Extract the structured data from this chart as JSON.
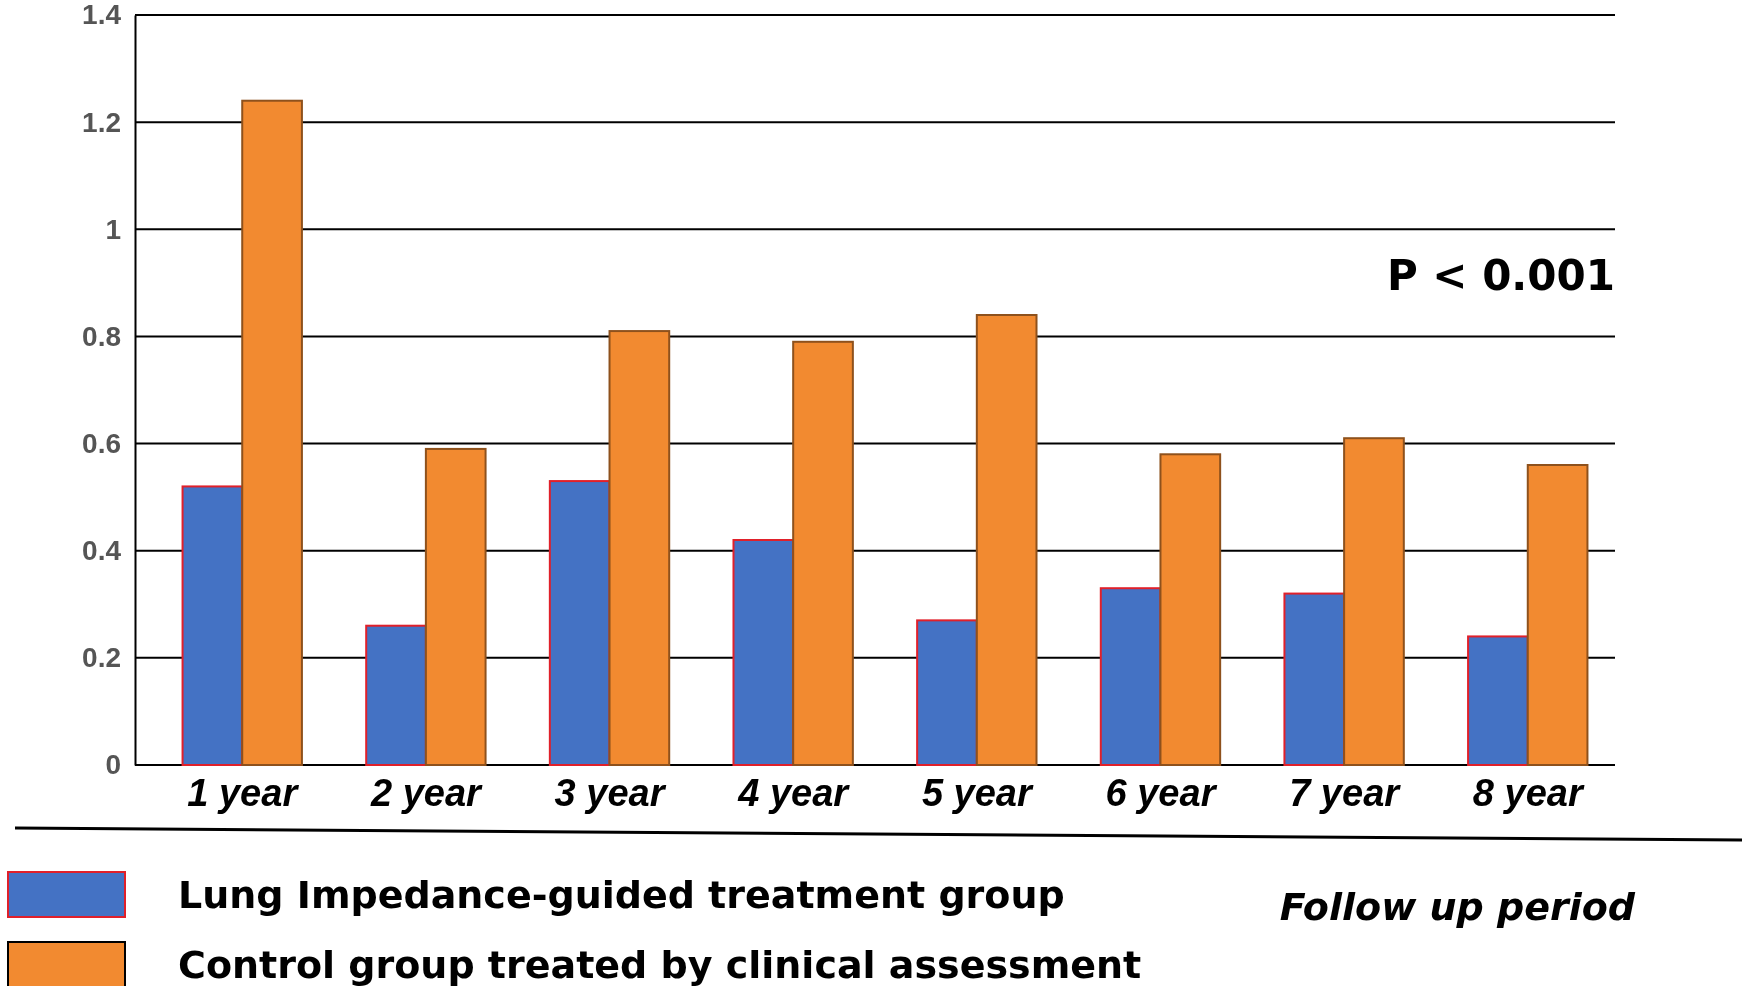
{
  "chart_data": {
    "type": "bar",
    "xlabel": "Follow up period",
    "categories": [
      "1 year",
      "2 year",
      "3 year",
      "4 year",
      "5 year",
      "6 year",
      "7 year",
      "8 year"
    ],
    "series": [
      {
        "name": "Lung Impedance-guided treatment group",
        "color": "#4472c4",
        "values": [
          0.52,
          0.26,
          0.53,
          0.42,
          0.27,
          0.33,
          0.32,
          0.24
        ]
      },
      {
        "name": "Control group treated by clinical assessment",
        "color": "#f28a30",
        "values": [
          1.24,
          0.59,
          0.81,
          0.79,
          0.84,
          0.58,
          0.61,
          0.56
        ]
      }
    ],
    "ylim": [
      0,
      1.4
    ],
    "yticks": [
      0,
      0.2,
      0.4,
      0.6,
      0.8,
      1,
      1.2,
      1.4
    ],
    "grid": "y",
    "legend": "bottom left",
    "annotations": [
      "P < 0.001"
    ]
  }
}
